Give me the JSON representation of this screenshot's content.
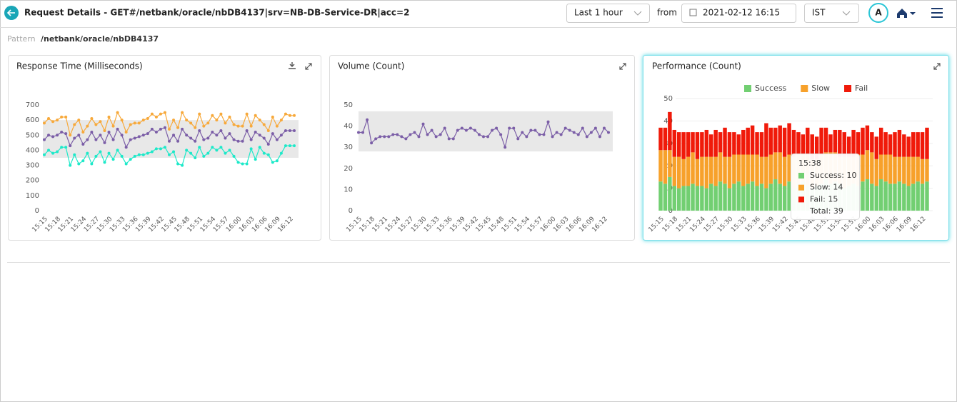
{
  "header": {
    "title": "Request Details - GET#/netbank/oracle/nbDB4137|srv=NB-DB-Service-DR|acc=2",
    "range": "Last 1 hour",
    "from_label": "from",
    "from_date": "2021-02-12 16:15",
    "timezone": "IST",
    "avatar": "A"
  },
  "pattern": {
    "label": "Pattern",
    "value": "/netbank/oracle/nbDB4137"
  },
  "chart_data": [
    {
      "type": "line",
      "title": "Response Time (Milliseconds)",
      "categories": [
        "15:15",
        null,
        null,
        "15:18",
        null,
        null,
        "15:21",
        null,
        null,
        "15:24",
        null,
        null,
        "15:27",
        null,
        null,
        "15:30",
        null,
        null,
        "15:33",
        null,
        null,
        "15:36",
        null,
        null,
        "15:39",
        null,
        null,
        "15:42",
        null,
        null,
        "15:45",
        null,
        null,
        "15:48",
        null,
        null,
        "15:51",
        null,
        null,
        "15:54",
        null,
        null,
        "15:57",
        null,
        null,
        "16:00",
        null,
        null,
        "16:03",
        null,
        null,
        "16:06",
        null,
        null,
        "16:09",
        null,
        null,
        "16:12",
        null
      ],
      "series": [
        {
          "color": "#f7a93b",
          "values": [
            580,
            610,
            590,
            600,
            620,
            620,
            500,
            570,
            600,
            520,
            560,
            610,
            570,
            590,
            530,
            620,
            560,
            650,
            600,
            520,
            570,
            580,
            580,
            600,
            610,
            640,
            620,
            640,
            650,
            540,
            600,
            550,
            650,
            600,
            580,
            550,
            640,
            560,
            580,
            630,
            600,
            640,
            580,
            620,
            570,
            560,
            560,
            640,
            560,
            630,
            600,
            570,
            530,
            620,
            560,
            600,
            640,
            630,
            630
          ]
        },
        {
          "color": "#7b5ea7",
          "values": [
            470,
            500,
            490,
            500,
            520,
            510,
            430,
            480,
            500,
            440,
            470,
            520,
            470,
            500,
            450,
            520,
            470,
            540,
            500,
            420,
            470,
            480,
            490,
            500,
            510,
            540,
            520,
            540,
            550,
            460,
            500,
            460,
            540,
            500,
            480,
            460,
            530,
            470,
            480,
            520,
            500,
            530,
            480,
            510,
            470,
            460,
            460,
            530,
            470,
            520,
            500,
            480,
            440,
            510,
            470,
            500,
            530,
            530,
            530
          ]
        },
        {
          "color": "#1de9c9",
          "values": [
            370,
            400,
            380,
            390,
            420,
            420,
            300,
            370,
            310,
            330,
            380,
            310,
            360,
            390,
            320,
            380,
            340,
            400,
            360,
            310,
            340,
            360,
            370,
            370,
            380,
            390,
            410,
            410,
            420,
            370,
            390,
            310,
            300,
            400,
            380,
            350,
            420,
            360,
            380,
            420,
            400,
            420,
            380,
            400,
            360,
            320,
            310,
            310,
            410,
            340,
            420,
            380,
            370,
            320,
            330,
            380,
            430,
            430,
            430
          ]
        }
      ],
      "band": [
        350,
        600
      ],
      "ylim": [
        0,
        700
      ],
      "yticks": [
        0,
        100,
        200,
        300,
        400,
        500,
        600,
        700
      ],
      "grid": false
    },
    {
      "type": "line",
      "title": "Volume (Count)",
      "categories": [
        "15:15",
        null,
        null,
        "15:18",
        null,
        null,
        "15:21",
        null,
        null,
        "15:24",
        null,
        null,
        "15:27",
        null,
        null,
        "15:30",
        null,
        null,
        "15:33",
        null,
        null,
        "15:36",
        null,
        null,
        "15:39",
        null,
        null,
        "15:42",
        null,
        null,
        "15:45",
        null,
        null,
        "15:48",
        null,
        null,
        "15:51",
        null,
        null,
        "15:54",
        null,
        null,
        "15:57",
        null,
        null,
        "16:00",
        null,
        null,
        "16:03",
        null,
        null,
        "16:06",
        null,
        null,
        "16:09",
        null,
        null,
        "16:12",
        null
      ],
      "series": [
        {
          "color": "#7b5ea7",
          "values": [
            37,
            37,
            43,
            32,
            34,
            35,
            35,
            35,
            36,
            36,
            35,
            34,
            36,
            37,
            35,
            41,
            36,
            38,
            35,
            36,
            39,
            34,
            34,
            38,
            39,
            38,
            39,
            38,
            36,
            35,
            35,
            38,
            39,
            36,
            30,
            39,
            39,
            34,
            37,
            35,
            38,
            38,
            36,
            36,
            42,
            35,
            37,
            36,
            39,
            38,
            37,
            36,
            39,
            35,
            37,
            39,
            35,
            39,
            37
          ]
        }
      ],
      "band": [
        28,
        47
      ],
      "ylim": [
        0,
        50
      ],
      "yticks": [
        0,
        10,
        20,
        30,
        40,
        50
      ],
      "grid": false
    },
    {
      "type": "bar",
      "title": "Performance (Count)",
      "stacked": true,
      "legend": "top",
      "categories": [
        "15:15",
        null,
        null,
        "15:18",
        null,
        null,
        "15:21",
        null,
        null,
        "15:24",
        null,
        null,
        "15:27",
        null,
        null,
        "15:30",
        null,
        null,
        "15:33",
        null,
        null,
        "15:36",
        null,
        null,
        "15:39",
        null,
        null,
        "15:42",
        null,
        null,
        "15:45",
        null,
        null,
        "15:48",
        null,
        null,
        "15:51",
        null,
        null,
        "15:54",
        null,
        null,
        "15:57",
        null,
        null,
        "16:00",
        null,
        null,
        "16:03",
        null,
        null,
        "16:06",
        null,
        null,
        "16:09",
        null,
        null,
        "16:12",
        null
      ],
      "series": [
        {
          "name": "Success",
          "color": "#72cf72",
          "values": [
            13,
            12,
            15,
            11,
            10,
            11,
            11,
            12,
            11,
            11,
            10,
            12,
            11,
            13,
            12,
            10,
            12,
            13,
            11,
            12,
            13,
            11,
            12,
            10,
            12,
            14,
            12,
            11,
            13,
            10,
            12,
            13,
            11,
            10,
            11,
            12,
            14,
            12,
            13,
            12,
            10,
            11,
            12,
            11,
            13,
            14,
            12,
            11,
            14,
            13,
            12,
            12,
            13,
            12,
            11,
            12,
            13,
            12,
            13
          ]
        },
        {
          "name": "Slow",
          "color": "#f7a12b",
          "values": [
            14,
            15,
            12,
            13,
            14,
            12,
            13,
            14,
            12,
            13,
            14,
            12,
            13,
            13,
            12,
            14,
            13,
            12,
            14,
            13,
            12,
            14,
            12,
            14,
            13,
            12,
            14,
            13,
            12,
            14,
            13,
            12,
            14,
            13,
            12,
            13,
            12,
            14,
            13,
            12,
            14,
            13,
            12,
            14,
            12,
            13,
            14,
            12,
            11,
            12,
            13,
            12,
            11,
            12,
            13,
            12,
            11,
            11,
            10
          ]
        },
        {
          "name": "Fail",
          "color": "#f01a0a",
          "values": [
            10,
            10,
            17,
            12,
            11,
            12,
            11,
            9,
            12,
            11,
            12,
            10,
            12,
            9,
            13,
            11,
            10,
            9,
            11,
            12,
            13,
            10,
            11,
            15,
            12,
            11,
            12,
            13,
            14,
            12,
            10,
            9,
            12,
            11,
            10,
            12,
            11,
            8,
            10,
            12,
            11,
            9,
            12,
            10,
            12,
            11,
            9,
            10,
            12,
            10,
            9,
            11,
            12,
            10,
            9,
            11,
            11,
            12,
            14
          ]
        }
      ],
      "ylim": [
        0,
        50
      ],
      "yticks": [
        0,
        10,
        20,
        30,
        40,
        50
      ],
      "grid": true,
      "tooltip": {
        "title": "15:38",
        "items": [
          "Success: 10",
          "Slow: 14",
          "Fail: 15",
          "Total: 39"
        ]
      }
    }
  ]
}
